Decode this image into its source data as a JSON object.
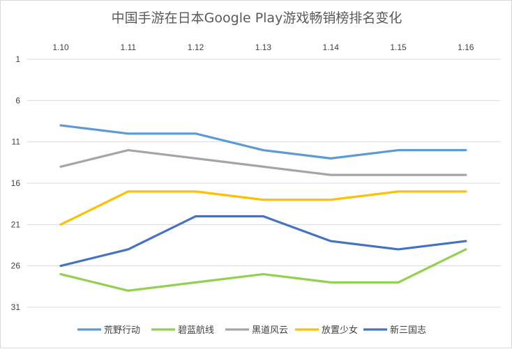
{
  "chart_data": {
    "type": "line",
    "title": "中国手游在日本Google Play游戏畅销榜排名变化",
    "categories": [
      "1.10",
      "1.11",
      "1.12",
      "1.13",
      "1.14",
      "1.15",
      "1.16"
    ],
    "y_ticks": [
      "1",
      "6",
      "11",
      "16",
      "21",
      "26",
      "31"
    ],
    "ylim": [
      1,
      31
    ],
    "y_reversed": true,
    "grid": true,
    "legend_position": "bottom",
    "series": [
      {
        "name": "荒野行动",
        "color": "#5b9bd5",
        "values": [
          9,
          10,
          10,
          12,
          13,
          12,
          12
        ]
      },
      {
        "name": "碧蓝航线",
        "color": "#92d050",
        "values": [
          27,
          29,
          28,
          27,
          28,
          28,
          24
        ]
      },
      {
        "name": "黑道风云",
        "color": "#a5a5a5",
        "values": [
          14,
          12,
          13,
          14,
          15,
          15,
          15
        ]
      },
      {
        "name": "放置少女",
        "color": "#ffc000",
        "values": [
          21,
          17,
          17,
          18,
          18,
          17,
          17
        ]
      },
      {
        "name": "新三国志",
        "color": "#4472c4",
        "values": [
          26,
          24,
          20,
          20,
          23,
          24,
          23
        ]
      }
    ]
  }
}
